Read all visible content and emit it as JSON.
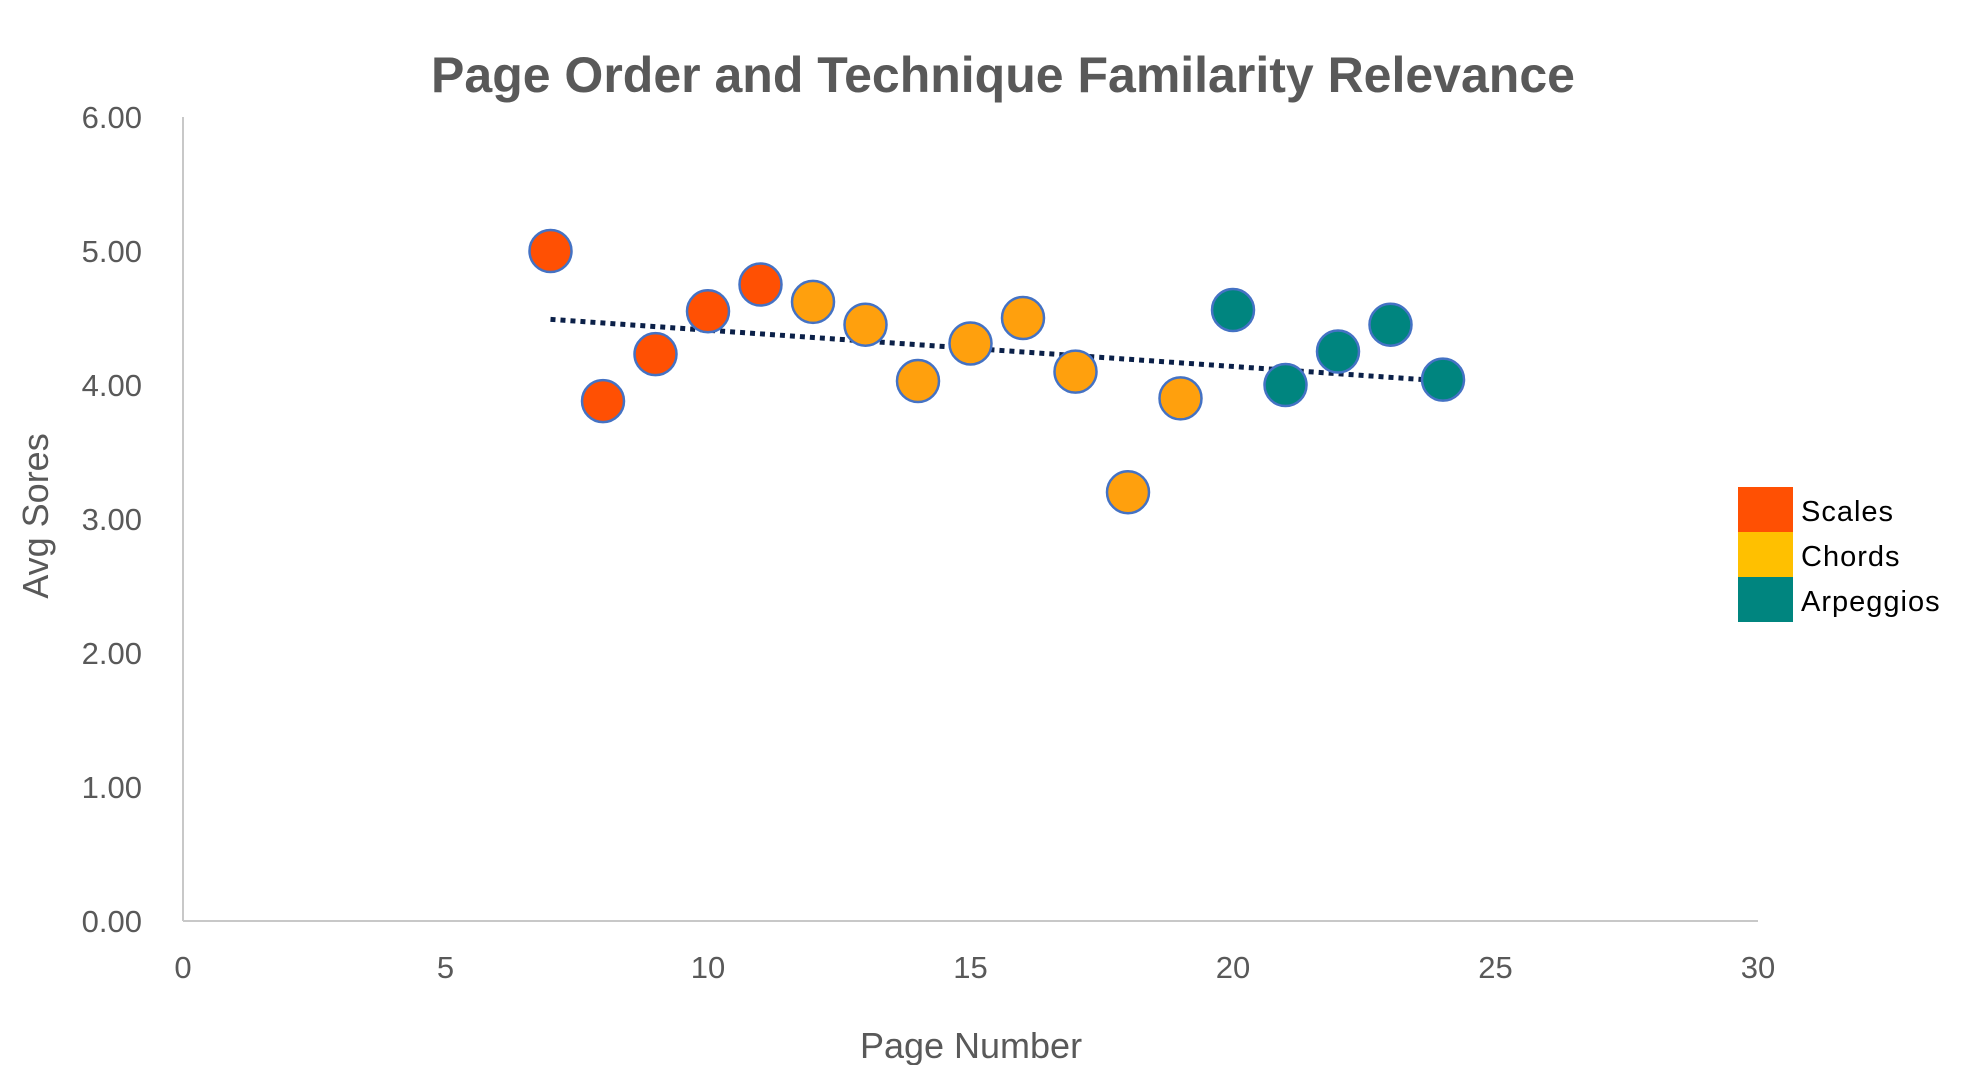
{
  "chart_data": {
    "type": "scatter",
    "title": "Page Order and Technique Familarity Relevance",
    "xlabel": "Page Number",
    "ylabel": "Avg Sores",
    "xlim": [
      0,
      30
    ],
    "ylim": [
      0,
      6
    ],
    "x_ticks": [
      "0",
      "5",
      "10",
      "15",
      "20",
      "25",
      "30"
    ],
    "x_tick_values": [
      0,
      5,
      10,
      15,
      20,
      25,
      30
    ],
    "y_ticks": [
      "0.00",
      "1.00",
      "2.00",
      "3.00",
      "4.00",
      "5.00",
      "6.00"
    ],
    "y_tick_values": [
      0,
      1,
      2,
      3,
      4,
      5,
      6
    ],
    "grid": false,
    "legend_position": "right",
    "series": [
      {
        "name": "Scales",
        "color": "#FF5003",
        "x": [
          7,
          8,
          9,
          10,
          11
        ],
        "y": [
          5.0,
          3.88,
          4.23,
          4.55,
          4.75
        ]
      },
      {
        "name": "Chords",
        "color": "#FFA00D",
        "legend_color": "#FFC000",
        "x": [
          12,
          13,
          14,
          15,
          16,
          17,
          18,
          19
        ],
        "y": [
          4.62,
          4.45,
          4.03,
          4.31,
          4.5,
          4.1,
          3.2,
          3.9
        ]
      },
      {
        "name": "Arpeggios",
        "color": "#00857F",
        "x": [
          20,
          21,
          22,
          23,
          24
        ],
        "y": [
          4.56,
          4.0,
          4.25,
          4.45,
          4.04
        ]
      }
    ],
    "trendline": {
      "style": "dotted",
      "color": "#0B2048",
      "x": [
        7,
        24
      ],
      "y": [
        4.49,
        4.03
      ]
    },
    "marker_outline_color": "#4472C4"
  }
}
